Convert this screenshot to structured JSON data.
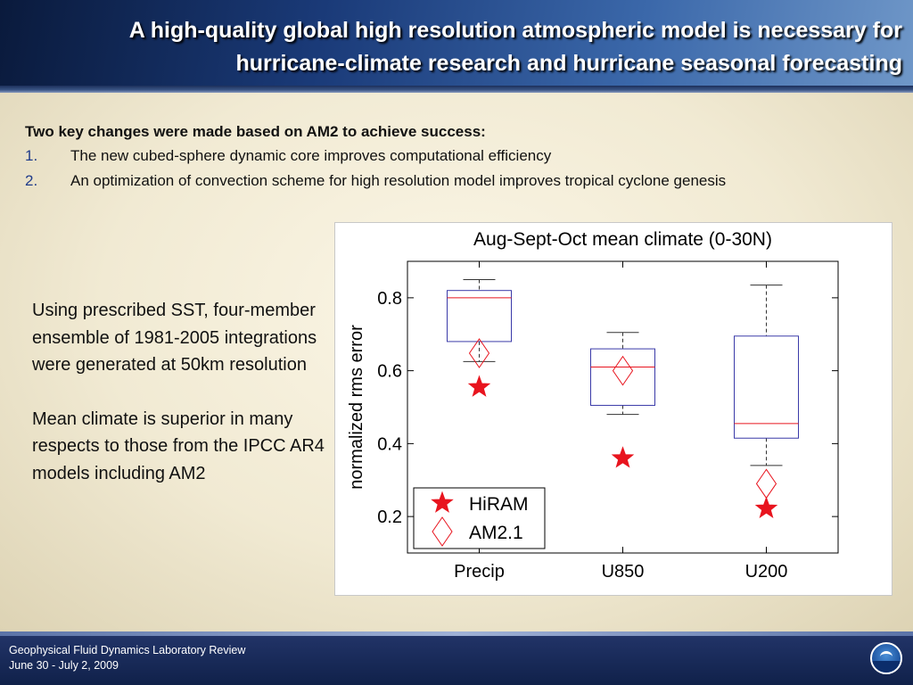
{
  "slide": {
    "title_line1": "A high-quality global high resolution atmospheric model is necessary for",
    "title_line2": "hurricane-climate research and hurricane seasonal forecasting"
  },
  "intro": {
    "heading": "Two key changes were made based on AM2 to achieve success:",
    "items": [
      {
        "number": "1.",
        "text": "The new cubed-sphere dynamic core improves computational efficiency"
      },
      {
        "number": "2.",
        "text": "An optimization of convection scheme for high resolution model improves tropical cyclone genesis"
      }
    ]
  },
  "left_text": {
    "para1": "Using prescribed SST, four-member ensemble of 1981-2005 integrations were generated at 50km resolution",
    "para2": "Mean climate is superior in many respects to those from the IPCC AR4 models including AM2"
  },
  "footer": {
    "line1": "Geophysical Fluid Dynamics Laboratory Review",
    "line2": "June 30 - July 2, 2009",
    "logo_icon": "noaa-logo-icon"
  },
  "chart_data": {
    "type": "boxplot",
    "title": "Aug-Sept-Oct mean climate (0-30N)",
    "xlabel": "",
    "ylabel": "normalized rms error",
    "ylim": [
      0.1,
      0.9
    ],
    "yticks": [
      0.2,
      0.4,
      0.6,
      0.8
    ],
    "categories": [
      "Precip",
      "U850",
      "U200"
    ],
    "boxes": [
      {
        "category": "Precip",
        "whisker_low": 0.625,
        "q1": 0.68,
        "median": 0.8,
        "q3": 0.82,
        "whisker_high": 0.85
      },
      {
        "category": "U850",
        "whisker_low": 0.48,
        "q1": 0.505,
        "median": 0.61,
        "q3": 0.66,
        "whisker_high": 0.705
      },
      {
        "category": "U200",
        "whisker_low": 0.34,
        "q1": 0.415,
        "median": 0.455,
        "q3": 0.695,
        "whisker_high": 0.835
      }
    ],
    "series": [
      {
        "name": "HiRAM",
        "marker": "star",
        "color": "#e8141e",
        "values": [
          0.555,
          0.36,
          0.222
        ]
      },
      {
        "name": "AM2.1",
        "marker": "diamond",
        "color": "#e8141e",
        "values": [
          0.648,
          0.6,
          0.29
        ]
      }
    ],
    "legend_position": "bottom-left",
    "colors": {
      "box": "#3a3aa8",
      "median": "#e8141e",
      "whisker": "#333333"
    }
  }
}
